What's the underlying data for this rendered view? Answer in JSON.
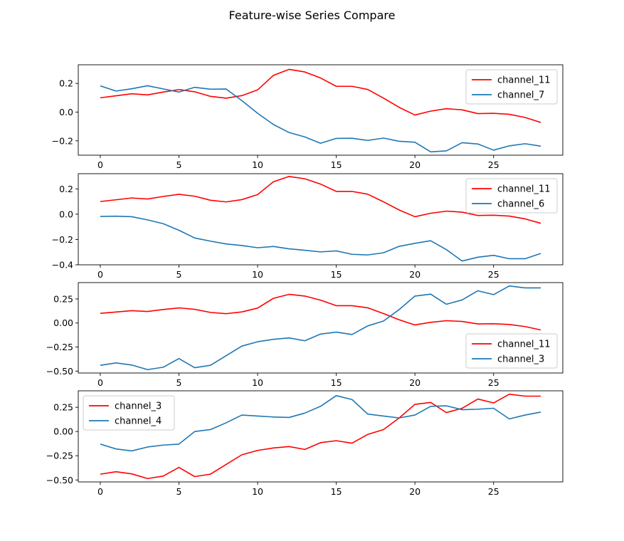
{
  "figure": {
    "title": "Feature-wise Series Compare"
  },
  "colors": {
    "red": "#ff0000",
    "blue": "#1f77b4",
    "axis": "#000000",
    "background": "#ffffff"
  },
  "chart_data": [
    {
      "type": "line",
      "x": [
        0,
        1,
        2,
        3,
        4,
        5,
        6,
        7,
        8,
        9,
        10,
        11,
        12,
        13,
        14,
        15,
        16,
        17,
        18,
        19,
        20,
        21,
        22,
        23,
        24,
        25,
        26,
        27,
        28
      ],
      "xlim": [
        -1.4,
        29.4
      ],
      "ylim": [
        -0.3,
        0.33
      ],
      "xticks": [
        0,
        5,
        10,
        15,
        20,
        25
      ],
      "yticks": [
        0.2,
        0.0,
        -0.2
      ],
      "ytick_labels": [
        "0.2",
        "0.0",
        "−0.2"
      ],
      "legend_position": "top-right",
      "series": [
        {
          "name": "channel_11",
          "color": "#ff0000",
          "values": [
            0.1,
            0.114,
            0.128,
            0.12,
            0.14,
            0.157,
            0.142,
            0.11,
            0.097,
            0.115,
            0.155,
            0.256,
            0.298,
            0.28,
            0.238,
            0.18,
            0.18,
            0.158,
            0.098,
            0.033,
            -0.02,
            0.007,
            0.024,
            0.016,
            -0.01,
            -0.008,
            -0.015,
            -0.037,
            -0.072
          ]
        },
        {
          "name": "channel_7",
          "color": "#1f77b4",
          "values": [
            0.183,
            0.147,
            0.163,
            0.184,
            0.162,
            0.14,
            0.173,
            0.16,
            0.161,
            0.08,
            -0.008,
            -0.086,
            -0.142,
            -0.173,
            -0.217,
            -0.183,
            -0.182,
            -0.197,
            -0.181,
            -0.203,
            -0.21,
            -0.277,
            -0.27,
            -0.213,
            -0.222,
            -0.265,
            -0.235,
            -0.22,
            -0.237
          ]
        }
      ]
    },
    {
      "type": "line",
      "x": [
        0,
        1,
        2,
        3,
        4,
        5,
        6,
        7,
        8,
        9,
        10,
        11,
        12,
        13,
        14,
        15,
        16,
        17,
        18,
        19,
        20,
        21,
        22,
        23,
        24,
        25,
        26,
        27,
        28
      ],
      "xlim": [
        -1.4,
        29.4
      ],
      "ylim": [
        -0.4,
        0.32
      ],
      "xticks": [
        0,
        5,
        10,
        15,
        20,
        25
      ],
      "yticks": [
        0.2,
        0.0,
        -0.2,
        -0.4
      ],
      "ytick_labels": [
        "0.2",
        "0.0",
        "−0.2",
        "−0.4"
      ],
      "legend_position": "top-right",
      "series": [
        {
          "name": "channel_11",
          "color": "#ff0000",
          "values": [
            0.1,
            0.114,
            0.128,
            0.12,
            0.14,
            0.157,
            0.142,
            0.11,
            0.097,
            0.115,
            0.155,
            0.256,
            0.298,
            0.28,
            0.238,
            0.18,
            0.18,
            0.158,
            0.098,
            0.033,
            -0.02,
            0.007,
            0.024,
            0.016,
            -0.01,
            -0.008,
            -0.015,
            -0.037,
            -0.072
          ]
        },
        {
          "name": "channel_6",
          "color": "#1f77b4",
          "values": [
            -0.018,
            -0.016,
            -0.02,
            -0.045,
            -0.075,
            -0.127,
            -0.188,
            -0.213,
            -0.235,
            -0.248,
            -0.265,
            -0.255,
            -0.274,
            -0.285,
            -0.298,
            -0.29,
            -0.317,
            -0.322,
            -0.305,
            -0.254,
            -0.23,
            -0.21,
            -0.28,
            -0.37,
            -0.34,
            -0.325,
            -0.352,
            -0.352,
            -0.31
          ]
        }
      ]
    },
    {
      "type": "line",
      "x": [
        0,
        1,
        2,
        3,
        4,
        5,
        6,
        7,
        8,
        9,
        10,
        11,
        12,
        13,
        14,
        15,
        16,
        17,
        18,
        19,
        20,
        21,
        22,
        23,
        24,
        25,
        26,
        27,
        28
      ],
      "xlim": [
        -1.4,
        29.4
      ],
      "ylim": [
        -0.52,
        0.42
      ],
      "xticks": [
        0,
        5,
        10,
        15,
        20,
        25
      ],
      "yticks": [
        0.25,
        0.0,
        -0.25,
        -0.5
      ],
      "ytick_labels": [
        "0.25",
        "0.00",
        "−0.25",
        "−0.50"
      ],
      "legend_position": "bottom-right",
      "series": [
        {
          "name": "channel_11",
          "color": "#ff0000",
          "values": [
            0.1,
            0.114,
            0.128,
            0.12,
            0.14,
            0.157,
            0.142,
            0.11,
            0.097,
            0.115,
            0.155,
            0.256,
            0.298,
            0.28,
            0.238,
            0.18,
            0.18,
            0.158,
            0.098,
            0.033,
            -0.02,
            0.007,
            0.024,
            0.016,
            -0.01,
            -0.008,
            -0.015,
            -0.037,
            -0.072
          ]
        },
        {
          "name": "channel_3",
          "color": "#1f77b4",
          "values": [
            -0.44,
            -0.415,
            -0.437,
            -0.485,
            -0.46,
            -0.37,
            -0.465,
            -0.44,
            -0.34,
            -0.24,
            -0.195,
            -0.17,
            -0.155,
            -0.185,
            -0.115,
            -0.095,
            -0.12,
            -0.03,
            0.02,
            0.14,
            0.28,
            0.3,
            0.195,
            0.24,
            0.335,
            0.295,
            0.385,
            0.365,
            0.365
          ]
        }
      ]
    },
    {
      "type": "line",
      "x": [
        0,
        1,
        2,
        3,
        4,
        5,
        6,
        7,
        8,
        9,
        10,
        11,
        12,
        13,
        14,
        15,
        16,
        17,
        18,
        19,
        20,
        21,
        22,
        23,
        24,
        25,
        26,
        27,
        28
      ],
      "xlim": [
        -1.4,
        29.4
      ],
      "ylim": [
        -0.52,
        0.42
      ],
      "xticks": [
        0,
        5,
        10,
        15,
        20,
        25
      ],
      "yticks": [
        0.25,
        0.0,
        -0.25,
        -0.5
      ],
      "ytick_labels": [
        "0.25",
        "0.00",
        "−0.25",
        "−0.50"
      ],
      "legend_position": "top-left",
      "series": [
        {
          "name": "channel_3",
          "color": "#ff0000",
          "values": [
            -0.44,
            -0.415,
            -0.437,
            -0.485,
            -0.46,
            -0.37,
            -0.465,
            -0.44,
            -0.34,
            -0.24,
            -0.195,
            -0.17,
            -0.155,
            -0.185,
            -0.115,
            -0.095,
            -0.12,
            -0.03,
            0.02,
            0.14,
            0.28,
            0.3,
            0.195,
            0.24,
            0.335,
            0.295,
            0.385,
            0.365,
            0.365
          ]
        },
        {
          "name": "channel_4",
          "color": "#1f77b4",
          "values": [
            -0.13,
            -0.18,
            -0.2,
            -0.16,
            -0.14,
            -0.13,
            0.0,
            0.02,
            0.09,
            0.17,
            0.16,
            0.15,
            0.145,
            0.19,
            0.26,
            0.37,
            0.33,
            0.18,
            0.16,
            0.14,
            0.17,
            0.26,
            0.265,
            0.225,
            0.23,
            0.24,
            0.13,
            0.17,
            0.2
          ]
        }
      ]
    }
  ]
}
